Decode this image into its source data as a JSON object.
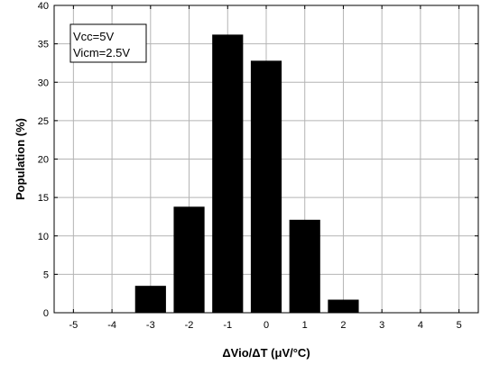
{
  "chart_data": {
    "type": "bar",
    "xlabel": "ΔVio/ΔT (μV/°C)",
    "ylabel": "Population (%)",
    "xlim": [
      -5.5,
      5.5
    ],
    "ylim": [
      0,
      40
    ],
    "x_ticks": [
      -5,
      -4,
      -3,
      -2,
      -1,
      0,
      1,
      2,
      3,
      4,
      5
    ],
    "y_ticks": [
      0,
      5,
      10,
      15,
      20,
      25,
      30,
      35,
      40
    ],
    "grid": true,
    "bar_width": 0.8,
    "bar_color": "#000000",
    "x": [
      -3,
      -2,
      -1,
      0,
      1,
      2
    ],
    "values": [
      3.5,
      13.8,
      36.2,
      32.8,
      12.1,
      1.7
    ],
    "annotation": {
      "lines": [
        "Vcc=5V",
        "Vicm=2.5V"
      ],
      "position": "top-left"
    }
  }
}
